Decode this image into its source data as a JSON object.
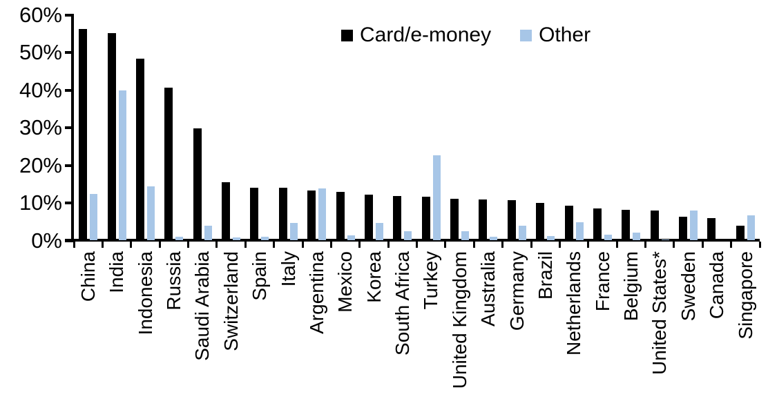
{
  "chart_data": {
    "type": "bar",
    "title": "",
    "xlabel": "",
    "ylabel": "",
    "ylim": [
      0,
      60
    ],
    "y_tick_labels": [
      "0%",
      "10%",
      "20%",
      "30%",
      "40%",
      "50%",
      "60%"
    ],
    "grid": false,
    "legend_position": "top-center",
    "axis_color": "#000000",
    "background_color": "#ffffff",
    "categories": [
      "China",
      "India",
      "Indonesia",
      "Russia",
      "Saudi Arabia",
      "Switzerland",
      "Spain",
      "Italy",
      "Argentina",
      "Mexico",
      "Korea",
      "South Africa",
      "Turkey",
      "United Kingdom",
      "Australia",
      "Germany",
      "Brazil",
      "Netherlands",
      "France",
      "Belgium",
      "United States*",
      "Sweden",
      "Canada",
      "Singapore"
    ],
    "series": [
      {
        "name": "Card/e-money",
        "color": "#000000",
        "values": [
          56.2,
          55.0,
          48.3,
          40.5,
          29.8,
          15.5,
          13.9,
          13.9,
          13.3,
          12.9,
          12.2,
          11.8,
          11.6,
          11.0,
          10.8,
          10.6,
          9.9,
          9.2,
          8.5,
          8.1,
          7.9,
          6.3,
          5.9,
          3.9
        ]
      },
      {
        "name": "Other",
        "color": "#A7C6E7",
        "values": [
          12.3,
          39.8,
          14.4,
          1.0,
          3.8,
          0.7,
          1.0,
          4.6,
          13.8,
          1.2,
          4.5,
          2.3,
          22.6,
          2.3,
          1.0,
          3.9,
          1.1,
          4.8,
          1.4,
          2.1,
          0.2,
          7.9,
          0.0,
          6.6
        ]
      }
    ]
  }
}
